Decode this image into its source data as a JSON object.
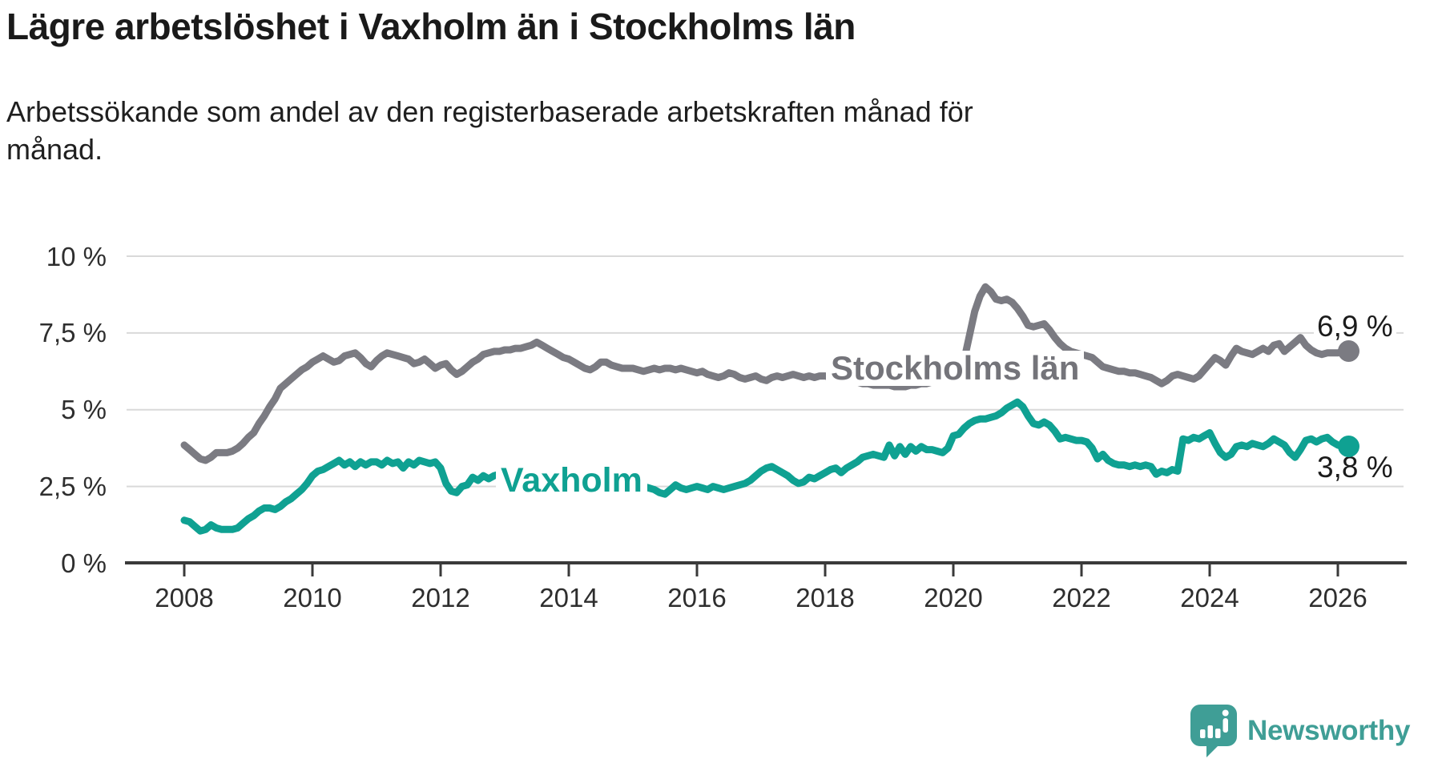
{
  "title": "Lägre arbetslöshet i Vaxholm än i Stockholms län",
  "subtitle": {
    "line1": "Arbetssökande som andel av den registerbaserade arbetskraften månad för",
    "line2": "månad."
  },
  "branding": {
    "name": "Newsworthy",
    "logo_icon": "bar-chart-speech-bubble",
    "color": "#3f9e96"
  },
  "colors": {
    "stockholms_lan_line": "#7b7b82",
    "vaxholm_line": "#0fa192",
    "gridline": "#d9d9d9",
    "axis": "#3a3a3a",
    "text": "#1a1a1a"
  },
  "chart_data": {
    "type": "line",
    "title": "Lägre arbetslöshet i Vaxholm än i Stockholms län",
    "subtitle": "Arbetssökande som andel av den registerbaserade arbetskraften månad för månad.",
    "unit": "%",
    "frequency": "monthly",
    "start": "2008-01",
    "end": "2026-03",
    "xlim": [
      2007.1,
      2026.9
    ],
    "ylim": [
      0,
      10
    ],
    "grid": "horizontal",
    "legend_position": "inline-labels",
    "x_ticks": [
      2008,
      2010,
      2012,
      2014,
      2016,
      2018,
      2020,
      2022,
      2024,
      2026
    ],
    "y_ticks": [
      {
        "value": 0,
        "label": "0 %"
      },
      {
        "value": 2.5,
        "label": "2,5 %"
      },
      {
        "value": 5,
        "label": "5 %"
      },
      {
        "value": 7.5,
        "label": "7,5 %"
      },
      {
        "value": 10,
        "label": "10 %"
      }
    ],
    "series": [
      {
        "name": "Stockholms län",
        "color": "#7b7b82",
        "end_value": 6.9,
        "end_label": "6,9 %",
        "values": [
          3.85,
          3.7,
          3.55,
          3.4,
          3.35,
          3.45,
          3.6,
          3.6,
          3.6,
          3.65,
          3.75,
          3.9,
          4.1,
          4.25,
          4.55,
          4.8,
          5.1,
          5.35,
          5.7,
          5.85,
          6.0,
          6.15,
          6.3,
          6.4,
          6.55,
          6.65,
          6.75,
          6.65,
          6.55,
          6.6,
          6.75,
          6.8,
          6.85,
          6.7,
          6.5,
          6.4,
          6.6,
          6.75,
          6.85,
          6.8,
          6.75,
          6.7,
          6.65,
          6.5,
          6.55,
          6.65,
          6.5,
          6.35,
          6.45,
          6.5,
          6.3,
          6.15,
          6.25,
          6.4,
          6.55,
          6.65,
          6.8,
          6.85,
          6.9,
          6.9,
          6.95,
          6.95,
          7.0,
          7.0,
          7.05,
          7.1,
          7.2,
          7.1,
          7.0,
          6.9,
          6.8,
          6.7,
          6.65,
          6.55,
          6.45,
          6.35,
          6.3,
          6.4,
          6.55,
          6.55,
          6.45,
          6.4,
          6.35,
          6.35,
          6.35,
          6.3,
          6.25,
          6.3,
          6.35,
          6.3,
          6.35,
          6.35,
          6.3,
          6.35,
          6.3,
          6.25,
          6.2,
          6.25,
          6.15,
          6.1,
          6.05,
          6.1,
          6.2,
          6.15,
          6.05,
          6.0,
          6.05,
          6.1,
          6.0,
          5.95,
          6.05,
          6.1,
          6.05,
          6.1,
          6.15,
          6.1,
          6.05,
          6.1,
          6.05,
          6.1,
          6.1,
          6.05,
          6.0,
          5.95,
          5.95,
          5.9,
          5.9,
          5.85,
          5.85,
          5.8,
          5.8,
          5.8,
          5.8,
          5.75,
          5.75,
          5.75,
          5.8,
          5.8,
          5.85,
          5.85,
          5.9,
          5.95,
          6.0,
          6.05,
          6.1,
          6.15,
          6.6,
          7.4,
          8.2,
          8.7,
          9.0,
          8.85,
          8.6,
          8.55,
          8.6,
          8.5,
          8.3,
          8.05,
          7.75,
          7.7,
          7.75,
          7.8,
          7.6,
          7.35,
          7.15,
          7.0,
          6.9,
          6.85,
          6.8,
          6.75,
          6.7,
          6.55,
          6.4,
          6.35,
          6.3,
          6.25,
          6.25,
          6.2,
          6.2,
          6.15,
          6.1,
          6.05,
          5.95,
          5.85,
          5.95,
          6.1,
          6.15,
          6.1,
          6.05,
          6.0,
          6.1,
          6.3,
          6.5,
          6.7,
          6.6,
          6.45,
          6.75,
          7.0,
          6.9,
          6.85,
          6.8,
          6.9,
          7.0,
          6.9,
          7.1,
          7.15,
          6.9,
          7.05,
          7.2,
          7.35,
          7.1,
          6.95,
          6.85,
          6.8,
          6.85,
          6.85,
          6.85,
          6.9,
          6.9
        ]
      },
      {
        "name": "Vaxholm",
        "color": "#0fa192",
        "end_value": 3.8,
        "end_label": "3,8 %",
        "values": [
          1.4,
          1.35,
          1.2,
          1.05,
          1.1,
          1.25,
          1.15,
          1.1,
          1.1,
          1.1,
          1.15,
          1.3,
          1.45,
          1.55,
          1.7,
          1.8,
          1.8,
          1.75,
          1.85,
          2.0,
          2.1,
          2.25,
          2.4,
          2.6,
          2.85,
          3.0,
          3.05,
          3.15,
          3.25,
          3.35,
          3.2,
          3.3,
          3.15,
          3.3,
          3.2,
          3.3,
          3.3,
          3.2,
          3.35,
          3.25,
          3.3,
          3.1,
          3.3,
          3.2,
          3.35,
          3.3,
          3.25,
          3.3,
          3.1,
          2.6,
          2.35,
          2.3,
          2.5,
          2.55,
          2.8,
          2.7,
          2.85,
          2.75,
          2.85,
          2.9,
          2.9,
          2.95,
          2.85,
          2.8,
          2.85,
          2.8,
          2.75,
          2.8,
          2.75,
          2.7,
          2.75,
          2.7,
          2.65,
          2.7,
          2.6,
          2.65,
          2.6,
          2.55,
          2.6,
          2.55,
          2.5,
          2.55,
          2.5,
          2.55,
          2.5,
          2.45,
          2.5,
          2.45,
          2.4,
          2.3,
          2.25,
          2.4,
          2.55,
          2.45,
          2.4,
          2.45,
          2.5,
          2.45,
          2.4,
          2.5,
          2.45,
          2.4,
          2.45,
          2.5,
          2.55,
          2.6,
          2.7,
          2.85,
          3.0,
          3.1,
          3.15,
          3.05,
          2.95,
          2.85,
          2.7,
          2.6,
          2.65,
          2.8,
          2.75,
          2.85,
          2.95,
          3.05,
          3.1,
          2.95,
          3.1,
          3.2,
          3.3,
          3.45,
          3.5,
          3.55,
          3.5,
          3.45,
          3.85,
          3.5,
          3.8,
          3.55,
          3.8,
          3.65,
          3.8,
          3.7,
          3.7,
          3.65,
          3.6,
          3.75,
          4.15,
          4.2,
          4.4,
          4.55,
          4.65,
          4.7,
          4.7,
          4.75,
          4.8,
          4.9,
          5.05,
          5.15,
          5.25,
          5.1,
          4.8,
          4.55,
          4.5,
          4.6,
          4.5,
          4.3,
          4.05,
          4.1,
          4.05,
          4.0,
          4.0,
          3.95,
          3.75,
          3.4,
          3.55,
          3.35,
          3.25,
          3.2,
          3.2,
          3.15,
          3.2,
          3.15,
          3.2,
          3.15,
          2.9,
          3.0,
          2.95,
          3.05,
          3.0,
          4.05,
          4.0,
          4.1,
          4.05,
          4.15,
          4.25,
          3.9,
          3.6,
          3.45,
          3.55,
          3.8,
          3.85,
          3.8,
          3.9,
          3.85,
          3.8,
          3.9,
          4.05,
          3.95,
          3.85,
          3.6,
          3.45,
          3.7,
          4.0,
          4.05,
          3.95,
          4.05,
          4.1,
          3.95,
          3.85,
          3.8,
          3.8
        ]
      }
    ]
  }
}
